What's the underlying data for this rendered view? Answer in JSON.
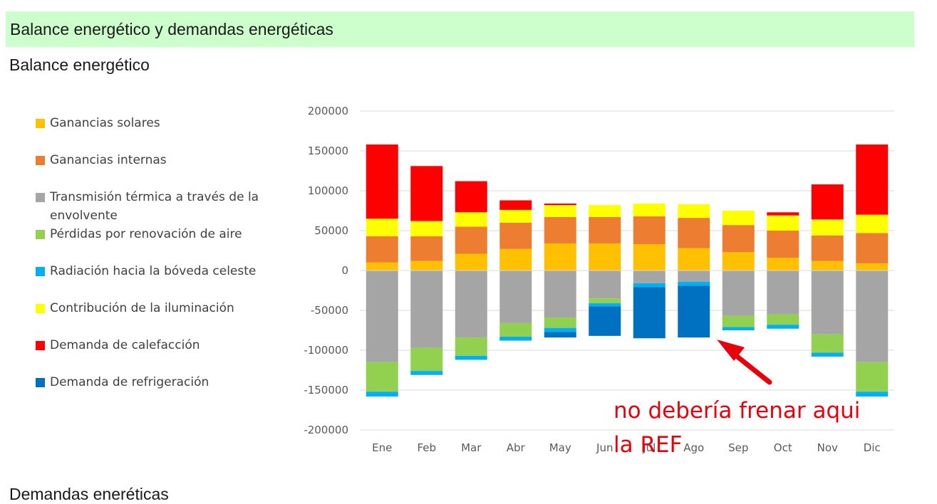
{
  "header": {
    "title": "Balance energético y demandas energéticas"
  },
  "sections": {
    "balance_title": "Balance energético",
    "demands_title": "Demandas eneréticas"
  },
  "annotation": {
    "line1": "no debería frenar aqui",
    "line2": "la REF"
  },
  "colors": {
    "header_bg": "#ccffcc",
    "annotation": "#e8000b",
    "solares": "#ffc000",
    "internas": "#ed7d31",
    "transmision": "#a5a5a5",
    "renovacion": "#92d050",
    "radiacion": "#00b0f0",
    "iluminacion": "#ffff00",
    "calefaccion": "#ff0000",
    "refrigeracion": "#0070c0"
  },
  "chart_data": {
    "type": "bar",
    "stacked": true,
    "categories": [
      "Ene",
      "Feb",
      "Mar",
      "Abr",
      "May",
      "Jun",
      "Jul",
      "Ago",
      "Sep",
      "Oct",
      "Nov",
      "Dic"
    ],
    "ylim": [
      -200000,
      200000
    ],
    "yticks": [
      "200000",
      "150000",
      "100000",
      "50000",
      "0",
      "-50000",
      "-100000",
      "-150000",
      "-200000"
    ],
    "ytick_values": [
      200000,
      150000,
      100000,
      50000,
      0,
      -50000,
      -100000,
      -150000,
      -200000
    ],
    "grid": true,
    "legend_position": "left",
    "series": [
      {
        "key": "solares",
        "name": "Ganancias solares",
        "values": [
          10000,
          12000,
          21000,
          27000,
          34000,
          34000,
          33000,
          28000,
          23000,
          16000,
          12000,
          9000
        ]
      },
      {
        "key": "internas",
        "name": "Ganancias internas",
        "values": [
          33000,
          31000,
          34000,
          33000,
          33000,
          33000,
          35000,
          38000,
          34000,
          34000,
          32000,
          38000
        ]
      },
      {
        "key": "transmision",
        "name": "Transmisión térmica a través de la envolvente",
        "values": [
          -115000,
          -97000,
          -84000,
          -66000,
          -59000,
          -35000,
          -16000,
          -14000,
          -57000,
          -55000,
          -80000,
          -115000
        ]
      },
      {
        "key": "renovacion",
        "name": "Pérdidas por renovación de aire",
        "values": [
          -37000,
          -29000,
          -23000,
          -17000,
          -13000,
          -6000,
          0,
          0,
          -14000,
          -13000,
          -23000,
          -37000
        ]
      },
      {
        "key": "radiacion",
        "name": "Radiación hacia la bóveda celeste",
        "values": [
          -6000,
          -5000,
          -5000,
          -5000,
          -5000,
          -4000,
          -5000,
          -5000,
          -4000,
          -5000,
          -5000,
          -6000
        ]
      },
      {
        "key": "iluminacion",
        "name": "Contribución de la iluminación",
        "values": [
          22000,
          19000,
          18000,
          16000,
          15000,
          15000,
          16000,
          17000,
          18000,
          19000,
          20000,
          23000
        ]
      },
      {
        "key": "calefaccion",
        "name": "Demanda de calefacción",
        "values": [
          93000,
          69000,
          39000,
          12000,
          2000,
          0,
          0,
          0,
          0,
          4000,
          44000,
          88000
        ]
      },
      {
        "key": "refrigeracion",
        "name": "Demanda de refrigeración",
        "values": [
          0,
          0,
          0,
          0,
          -7000,
          -37000,
          -64000,
          -65000,
          0,
          0,
          0,
          0
        ]
      }
    ]
  }
}
